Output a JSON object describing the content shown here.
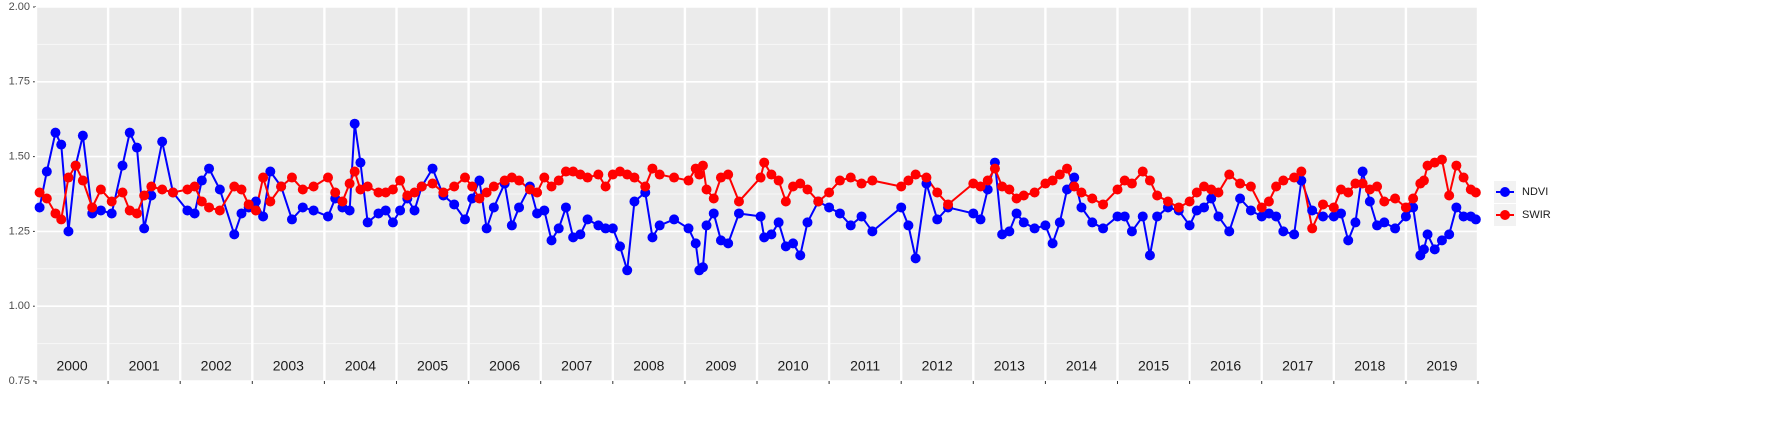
{
  "chart_data": {
    "type": "line",
    "x": [
      2000.05,
      2000.15,
      2000.27,
      2000.35,
      2000.45,
      2000.55,
      2000.65,
      2000.78,
      2000.9,
      2001.05,
      2001.2,
      2001.3,
      2001.4,
      2001.5,
      2001.6,
      2001.75,
      2001.9,
      2002.1,
      2002.2,
      2002.3,
      2002.4,
      2002.55,
      2002.75,
      2002.85,
      2002.95,
      2003.05,
      2003.15,
      2003.25,
      2003.4,
      2003.55,
      2003.7,
      2003.85,
      2004.05,
      2004.15,
      2004.25,
      2004.35,
      2004.42,
      2004.5,
      2004.6,
      2004.75,
      2004.85,
      2004.95,
      2005.05,
      2005.15,
      2005.25,
      2005.35,
      2005.5,
      2005.65,
      2005.8,
      2005.95,
      2006.05,
      2006.15,
      2006.25,
      2006.35,
      2006.5,
      2006.6,
      2006.7,
      2006.85,
      2006.95,
      2007.05,
      2007.15,
      2007.25,
      2007.35,
      2007.45,
      2007.55,
      2007.65,
      2007.8,
      2007.9,
      2008.0,
      2008.1,
      2008.2,
      2008.3,
      2008.45,
      2008.55,
      2008.65,
      2008.85,
      2009.05,
      2009.15,
      2009.2,
      2009.25,
      2009.3,
      2009.4,
      2009.5,
      2009.6,
      2009.75,
      2010.05,
      2010.1,
      2010.2,
      2010.3,
      2010.4,
      2010.5,
      2010.6,
      2010.7,
      2010.85,
      2011.0,
      2011.15,
      2011.3,
      2011.45,
      2011.6,
      2012.0,
      2012.1,
      2012.2,
      2012.35,
      2012.5,
      2012.65,
      2013.0,
      2013.1,
      2013.2,
      2013.3,
      2013.4,
      2013.5,
      2013.6,
      2013.7,
      2013.85,
      2014.0,
      2014.1,
      2014.2,
      2014.3,
      2014.4,
      2014.5,
      2014.65,
      2014.8,
      2015.0,
      2015.1,
      2015.2,
      2015.35,
      2015.45,
      2015.55,
      2015.7,
      2015.85,
      2016.0,
      2016.1,
      2016.2,
      2016.3,
      2016.4,
      2016.55,
      2016.7,
      2016.85,
      2017.0,
      2017.1,
      2017.2,
      2017.3,
      2017.45,
      2017.55,
      2017.7,
      2017.85,
      2018.0,
      2018.1,
      2018.2,
      2018.3,
      2018.4,
      2018.5,
      2018.6,
      2018.7,
      2018.85,
      2019.0,
      2019.1,
      2019.2,
      2019.25,
      2019.3,
      2019.4,
      2019.5,
      2019.6,
      2019.7,
      2019.8,
      2019.9,
      2019.97
    ],
    "series": [
      {
        "name": "NDVI",
        "color": "#0000ff",
        "values": [
          1.33,
          1.45,
          1.58,
          1.54,
          1.25,
          1.47,
          1.57,
          1.31,
          1.32,
          1.31,
          1.47,
          1.58,
          1.53,
          1.26,
          1.37,
          1.55,
          1.38,
          1.32,
          1.31,
          1.42,
          1.46,
          1.39,
          1.24,
          1.31,
          1.33,
          1.35,
          1.3,
          1.45,
          1.4,
          1.29,
          1.33,
          1.32,
          1.3,
          1.36,
          1.33,
          1.32,
          1.61,
          1.48,
          1.28,
          1.31,
          1.32,
          1.28,
          1.32,
          1.36,
          1.32,
          1.4,
          1.46,
          1.37,
          1.34,
          1.29,
          1.36,
          1.42,
          1.26,
          1.33,
          1.41,
          1.27,
          1.33,
          1.4,
          1.31,
          1.32,
          1.22,
          1.26,
          1.33,
          1.23,
          1.24,
          1.29,
          1.27,
          1.26,
          1.26,
          1.2,
          1.12,
          1.35,
          1.38,
          1.23,
          1.27,
          1.29,
          1.26,
          1.21,
          1.12,
          1.13,
          1.27,
          1.31,
          1.22,
          1.21,
          1.31,
          1.3,
          1.23,
          1.24,
          1.28,
          1.2,
          1.21,
          1.17,
          1.28,
          1.35,
          1.33,
          1.31,
          1.27,
          1.3,
          1.25,
          1.33,
          1.27,
          1.16,
          1.41,
          1.29,
          1.33,
          1.31,
          1.29,
          1.39,
          1.48,
          1.24,
          1.25,
          1.31,
          1.28,
          1.26,
          1.27,
          1.21,
          1.28,
          1.39,
          1.43,
          1.33,
          1.28,
          1.26,
          1.3,
          1.3,
          1.25,
          1.3,
          1.17,
          1.3,
          1.33,
          1.32,
          1.27,
          1.32,
          1.33,
          1.36,
          1.3,
          1.25,
          1.36,
          1.32,
          1.3,
          1.31,
          1.3,
          1.25,
          1.24,
          1.42,
          1.32,
          1.3,
          1.3,
          1.31,
          1.22,
          1.28,
          1.45,
          1.35,
          1.27,
          1.28,
          1.26,
          1.3,
          1.33,
          1.17,
          1.19,
          1.24,
          1.19,
          1.22,
          1.24,
          1.33,
          1.3,
          1.3,
          1.29
        ]
      },
      {
        "name": "SWIR",
        "color": "#ff0000",
        "values": [
          1.38,
          1.36,
          1.31,
          1.29,
          1.43,
          1.47,
          1.42,
          1.33,
          1.39,
          1.35,
          1.38,
          1.32,
          1.31,
          1.37,
          1.4,
          1.39,
          1.38,
          1.39,
          1.4,
          1.35,
          1.33,
          1.32,
          1.4,
          1.39,
          1.34,
          1.32,
          1.43,
          1.35,
          1.4,
          1.43,
          1.39,
          1.4,
          1.43,
          1.38,
          1.35,
          1.41,
          1.45,
          1.39,
          1.4,
          1.38,
          1.38,
          1.39,
          1.42,
          1.37,
          1.38,
          1.4,
          1.41,
          1.38,
          1.4,
          1.43,
          1.4,
          1.36,
          1.38,
          1.4,
          1.42,
          1.43,
          1.42,
          1.39,
          1.38,
          1.43,
          1.4,
          1.42,
          1.45,
          1.45,
          1.44,
          1.43,
          1.44,
          1.4,
          1.44,
          1.45,
          1.44,
          1.43,
          1.4,
          1.46,
          1.44,
          1.43,
          1.42,
          1.46,
          1.44,
          1.47,
          1.39,
          1.36,
          1.43,
          1.44,
          1.35,
          1.43,
          1.48,
          1.44,
          1.42,
          1.35,
          1.4,
          1.41,
          1.39,
          1.35,
          1.38,
          1.42,
          1.43,
          1.41,
          1.42,
          1.4,
          1.42,
          1.44,
          1.43,
          1.38,
          1.34,
          1.41,
          1.4,
          1.42,
          1.46,
          1.4,
          1.39,
          1.36,
          1.37,
          1.38,
          1.41,
          1.42,
          1.44,
          1.46,
          1.4,
          1.38,
          1.36,
          1.34,
          1.39,
          1.42,
          1.41,
          1.45,
          1.42,
          1.37,
          1.35,
          1.33,
          1.35,
          1.38,
          1.4,
          1.39,
          1.38,
          1.44,
          1.41,
          1.4,
          1.33,
          1.35,
          1.4,
          1.42,
          1.43,
          1.45,
          1.26,
          1.34,
          1.33,
          1.39,
          1.38,
          1.41,
          1.41,
          1.39,
          1.4,
          1.35,
          1.36,
          1.33,
          1.36,
          1.41,
          1.42,
          1.47,
          1.48,
          1.49,
          1.37,
          1.47,
          1.43,
          1.39,
          1.38
        ]
      }
    ],
    "xlim": [
      2000,
      2020
    ],
    "xgrid": [
      2000,
      2001,
      2002,
      2003,
      2004,
      2005,
      2006,
      2007,
      2008,
      2009,
      2010,
      2011,
      2012,
      2013,
      2014,
      2015,
      2016,
      2017,
      2018,
      2019,
      2020
    ],
    "year_labels": [
      "2000",
      "2001",
      "2002",
      "2003",
      "2004",
      "2005",
      "2006",
      "2007",
      "2008",
      "2009",
      "2010",
      "2011",
      "2012",
      "2013",
      "2014",
      "2015",
      "2016",
      "2017",
      "2018",
      "2019"
    ],
    "ylim": [
      0.75,
      2.0
    ],
    "yticks": [
      0.75,
      {
        "value": 1.0,
        "label": "1.00"
      },
      1.25,
      {
        "value": 1.5,
        "label": "1.50"
      },
      {
        "value": 1.75,
        "label": "1.75"
      },
      {
        "value": 2.0,
        "label": "2.00"
      }
    ],
    "grid": true,
    "legend": "right"
  }
}
